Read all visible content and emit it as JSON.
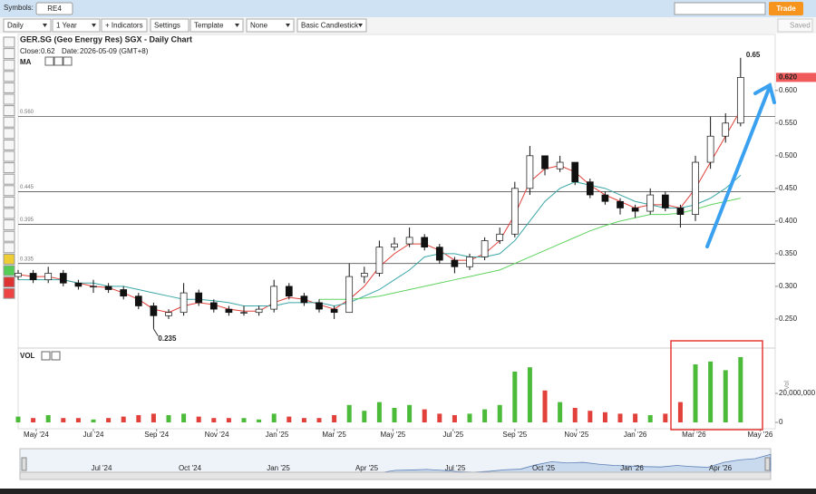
{
  "toolbar": {
    "symbols_label": "Symbols:",
    "symbol": "RE4",
    "trade": "Trade"
  },
  "controls": {
    "dropdowns": [
      "Daily",
      "1 Year",
      "Template",
      "None",
      "Basic Candlestick"
    ],
    "indicators": "+ Indicators",
    "settings": "Settings",
    "saved": "Saved"
  },
  "chart_data": {
    "type": "candlestick",
    "title": "GER.SG (Geo Energy Res) SGX - Daily Chart",
    "info": {
      "close_label": "Close:",
      "close": 0.62,
      "date_label": "Date:",
      "date": "2026-05-09 (GMT+8)"
    },
    "indicator_label": "MA",
    "categories": [
      null,
      null,
      null,
      null,
      null,
      null,
      null,
      null,
      null,
      null,
      null,
      null,
      null,
      null,
      null,
      null,
      null,
      null,
      null,
      null,
      null,
      null,
      null,
      null,
      null,
      null,
      null,
      null,
      null,
      null,
      null,
      null,
      null,
      null,
      null,
      null,
      null,
      null,
      null,
      null,
      null,
      null,
      null,
      null,
      null,
      null,
      null,
      null,
      null
    ],
    "open": [
      0.315,
      0.32,
      0.31,
      0.32,
      0.305,
      0.3,
      0.3,
      0.295,
      0.285,
      0.27,
      0.255,
      0.26,
      0.29,
      0.275,
      0.265,
      0.26,
      0.26,
      0.265,
      0.3,
      0.285,
      0.275,
      0.265,
      0.26,
      0.315,
      0.32,
      0.36,
      0.365,
      0.375,
      0.36,
      0.34,
      0.33,
      0.345,
      0.37,
      0.38,
      0.45,
      0.5,
      0.48,
      0.49,
      0.46,
      0.44,
      0.43,
      0.42,
      0.415,
      0.44,
      0.42,
      0.41,
      0.49,
      0.53,
      0.55
    ],
    "high": [
      0.325,
      0.325,
      0.33,
      0.325,
      0.31,
      0.31,
      0.305,
      0.3,
      0.29,
      0.275,
      0.265,
      0.305,
      0.295,
      0.28,
      0.27,
      0.27,
      0.27,
      0.31,
      0.305,
      0.29,
      0.28,
      0.27,
      0.335,
      0.33,
      0.37,
      0.375,
      0.39,
      0.38,
      0.365,
      0.345,
      0.35,
      0.375,
      0.39,
      0.46,
      0.515,
      0.5,
      0.5,
      0.49,
      0.465,
      0.445,
      0.435,
      0.425,
      0.45,
      0.445,
      0.425,
      0.5,
      0.56,
      0.565,
      0.65
    ],
    "low": [
      0.31,
      0.305,
      0.305,
      0.3,
      0.295,
      0.29,
      0.29,
      0.28,
      0.265,
      0.235,
      0.25,
      0.255,
      0.27,
      0.26,
      0.255,
      0.255,
      0.255,
      0.26,
      0.28,
      0.27,
      0.26,
      0.25,
      0.26,
      0.305,
      0.315,
      0.355,
      0.36,
      0.355,
      0.335,
      0.32,
      0.325,
      0.34,
      0.365,
      0.375,
      0.44,
      0.47,
      0.475,
      0.455,
      0.435,
      0.425,
      0.41,
      0.405,
      0.41,
      0.415,
      0.39,
      0.4,
      0.48,
      0.52,
      0.545
    ],
    "close": [
      0.32,
      0.31,
      0.32,
      0.305,
      0.3,
      0.3,
      0.295,
      0.285,
      0.27,
      0.255,
      0.26,
      0.29,
      0.275,
      0.265,
      0.26,
      0.26,
      0.265,
      0.3,
      0.285,
      0.275,
      0.265,
      0.26,
      0.315,
      0.32,
      0.36,
      0.365,
      0.375,
      0.36,
      0.34,
      0.33,
      0.345,
      0.37,
      0.38,
      0.45,
      0.5,
      0.48,
      0.49,
      0.46,
      0.44,
      0.43,
      0.42,
      0.415,
      0.44,
      0.42,
      0.41,
      0.49,
      0.53,
      0.55,
      0.62
    ],
    "up_color": "#ffffff",
    "down_color": "#111111",
    "series": [
      {
        "color": "#e0403a",
        "values": [
          0.318,
          0.315,
          0.315,
          0.31,
          0.305,
          0.3,
          0.298,
          0.29,
          0.28,
          0.265,
          0.26,
          0.27,
          0.275,
          0.272,
          0.265,
          0.262,
          0.262,
          0.275,
          0.283,
          0.28,
          0.272,
          0.265,
          0.28,
          0.3,
          0.33,
          0.35,
          0.365,
          0.365,
          0.355,
          0.34,
          0.34,
          0.35,
          0.37,
          0.41,
          0.46,
          0.48,
          0.485,
          0.475,
          0.455,
          0.44,
          0.43,
          0.42,
          0.425,
          0.425,
          0.42,
          0.45,
          0.49,
          0.53,
          0.57
        ]
      },
      {
        "color": "#3aa6a6",
        "values": [
          0.31,
          0.31,
          0.31,
          0.31,
          0.305,
          0.305,
          0.3,
          0.3,
          0.295,
          0.29,
          0.285,
          0.28,
          0.28,
          0.278,
          0.275,
          0.27,
          0.27,
          0.27,
          0.275,
          0.275,
          0.275,
          0.27,
          0.275,
          0.285,
          0.295,
          0.31,
          0.325,
          0.345,
          0.35,
          0.35,
          0.345,
          0.345,
          0.35,
          0.37,
          0.4,
          0.43,
          0.45,
          0.46,
          0.455,
          0.45,
          0.44,
          0.43,
          0.425,
          0.42,
          0.42,
          0.425,
          0.435,
          0.45,
          0.47
        ]
      },
      {
        "color": "#5fd35f",
        "values": [
          null,
          null,
          null,
          null,
          null,
          null,
          null,
          null,
          null,
          null,
          null,
          null,
          null,
          null,
          null,
          null,
          null,
          null,
          null,
          null,
          0.28,
          0.28,
          0.28,
          0.282,
          0.285,
          0.29,
          0.295,
          0.3,
          0.305,
          0.31,
          0.315,
          0.32,
          0.325,
          0.335,
          0.345,
          0.355,
          0.365,
          0.375,
          0.385,
          0.393,
          0.4,
          0.405,
          0.41,
          0.41,
          0.412,
          0.418,
          0.425,
          0.43,
          0.435
        ]
      }
    ],
    "ylim": [
      0.211,
      0.683
    ],
    "yticks": [
      {
        "value": 0.25,
        "label": "0.250"
      },
      {
        "value": 0.3,
        "label": "0.300"
      },
      {
        "value": 0.35,
        "label": "0.350"
      },
      {
        "value": 0.4,
        "label": "0.400"
      },
      {
        "value": 0.45,
        "label": "0.450"
      },
      {
        "value": 0.5,
        "label": "0.500"
      },
      {
        "value": 0.55,
        "label": "0.550"
      },
      {
        "value": 0.6,
        "label": "0.600"
      }
    ],
    "xlim": [
      0,
      50.3
    ],
    "xticks": [
      {
        "value": 1.2,
        "label": "May '24"
      },
      {
        "value": 5.0,
        "label": "Jul '24"
      },
      {
        "value": 9.2,
        "label": "Sep '24"
      },
      {
        "value": 13.2,
        "label": "Nov '24"
      },
      {
        "value": 17.2,
        "label": "Jan '25"
      },
      {
        "value": 21.0,
        "label": "Mar '25"
      },
      {
        "value": 24.9,
        "label": "May '25"
      },
      {
        "value": 28.9,
        "label": "Jul '25"
      },
      {
        "value": 33.0,
        "label": "Sep '25"
      },
      {
        "value": 37.1,
        "label": "Nov '25"
      },
      {
        "value": 41.0,
        "label": "Jan '26"
      },
      {
        "value": 44.9,
        "label": "Mar '26"
      },
      {
        "value": 49.3,
        "label": "May '26"
      }
    ],
    "levels": [
      {
        "value": 0.56,
        "label": "0.560"
      },
      {
        "value": 0.445,
        "label": "0.445"
      },
      {
        "value": 0.395,
        "label": "0.395"
      },
      {
        "value": 0.335,
        "label": "0.335"
      }
    ],
    "price_tag": {
      "value": 0.62,
      "label": "0.620",
      "color": "#f05a5a"
    },
    "high_annotation": {
      "value": 0.65,
      "label": "0.65"
    },
    "low_annotation": {
      "value": 0.235,
      "label": "0.235"
    },
    "volume": {
      "label": "VOL",
      "axis_label": "Vol",
      "up_color": "#4cbb3a",
      "down_color": "#e2403a",
      "values": [
        4000000,
        3000000,
        5000000,
        3000000,
        3000000,
        2000000,
        3000000,
        4000000,
        5000000,
        6000000,
        5000000,
        6000000,
        4000000,
        3000000,
        3000000,
        3000000,
        2000000,
        6000000,
        4000000,
        3000000,
        3000000,
        5000000,
        12000000,
        8000000,
        14000000,
        10000000,
        12000000,
        9000000,
        6000000,
        5000000,
        6000000,
        9000000,
        12000000,
        35000000,
        38000000,
        22000000,
        14000000,
        10000000,
        8000000,
        7000000,
        6000000,
        6000000,
        5000000,
        6000000,
        14000000,
        40000000,
        42000000,
        36000000,
        45000000
      ],
      "ylim": [
        0,
        50000000
      ],
      "yticks": [
        0,
        {
          "value": 20000000,
          "label": "20,000,000"
        }
      ]
    },
    "navigator": {
      "labels": [
        "Jul '24",
        "Oct '24",
        "Jan '25",
        "Apr '25",
        "Jul '25",
        "Oct '25",
        "Jan '26",
        "Apr '26"
      ]
    }
  }
}
